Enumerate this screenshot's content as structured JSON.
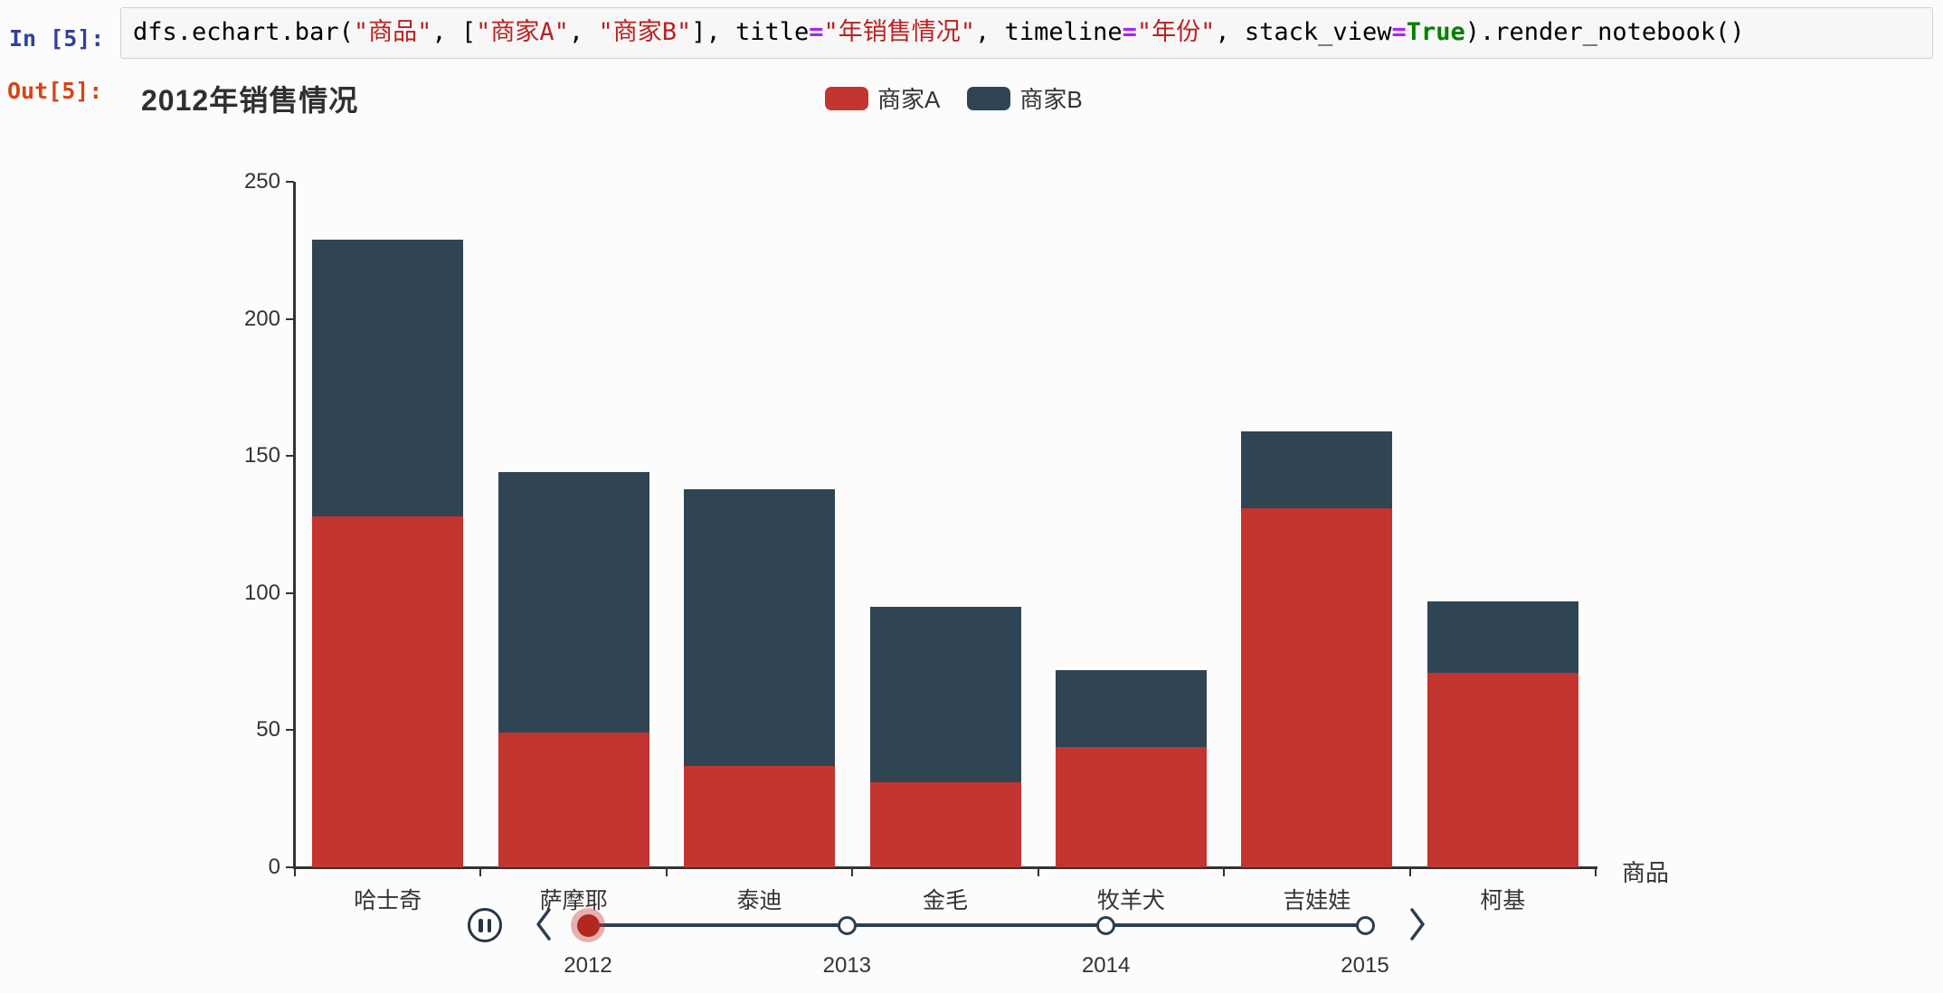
{
  "notebook": {
    "in_prompt": "In [5]:",
    "out_prompt": "Out[5]:",
    "code_tokens": [
      {
        "text": "dfs.echart.bar(",
        "type": "plain"
      },
      {
        "text": "\"商品\"",
        "type": "string"
      },
      {
        "text": ", [",
        "type": "plain"
      },
      {
        "text": "\"商家A\"",
        "type": "string"
      },
      {
        "text": ", ",
        "type": "plain"
      },
      {
        "text": "\"商家B\"",
        "type": "string"
      },
      {
        "text": "], title",
        "type": "plain"
      },
      {
        "text": "=",
        "type": "operator"
      },
      {
        "text": "\"年销售情况\"",
        "type": "string"
      },
      {
        "text": ", timeline",
        "type": "plain"
      },
      {
        "text": "=",
        "type": "operator"
      },
      {
        "text": "\"年份\"",
        "type": "string"
      },
      {
        "text": ", stack_view",
        "type": "plain"
      },
      {
        "text": "=",
        "type": "operator"
      },
      {
        "text": "True",
        "type": "keyword"
      },
      {
        "text": ").render_notebook()",
        "type": "plain"
      }
    ]
  },
  "chart_data": {
    "type": "bar",
    "stacked": true,
    "title": "2012年销售情况",
    "categories": [
      "哈士奇",
      "萨摩耶",
      "泰迪",
      "金毛",
      "牧羊犬",
      "吉娃娃",
      "柯基"
    ],
    "series": [
      {
        "name": "商家A",
        "color": "#c23531",
        "values": [
          128,
          49,
          37,
          31,
          44,
          131,
          71
        ]
      },
      {
        "name": "商家B",
        "color": "#2f4554",
        "values": [
          101,
          95,
          101,
          64,
          28,
          28,
          26
        ]
      }
    ],
    "stack_totals": [
      229,
      144,
      138,
      95,
      72,
      159,
      97
    ],
    "xlabel": "商品",
    "ylabel": "",
    "ylim": [
      0,
      250
    ],
    "ytick_step": 50,
    "ytick_labels": [
      "0",
      "50",
      "100",
      "150",
      "200",
      "250"
    ],
    "legend_position": "top-center",
    "grid": false
  },
  "timeline": {
    "years": [
      "2012",
      "2013",
      "2014",
      "2015"
    ],
    "current_year": "2012",
    "play_state_icon": "pause-icon",
    "prev_icon": "chevron-left-icon",
    "next_icon": "chevron-right-icon"
  },
  "colors": {
    "series_a_red": "#c23531",
    "series_b_navy": "#2f4554",
    "timeline_dark": "#2c3e50",
    "current_node_red": "#b3271e",
    "axis": "#333333",
    "in_prompt_blue": "#303f9f",
    "out_prompt_red": "#d84315",
    "code_string_red": "#ba2121",
    "code_operator_purple": "#aa22ff",
    "code_keyword_green": "#008000",
    "code_cell_bg": "#f7f7f7"
  }
}
